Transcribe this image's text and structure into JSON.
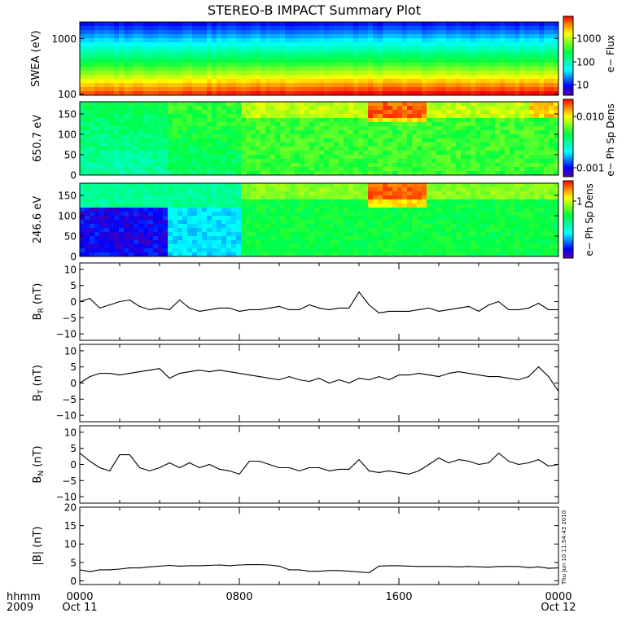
{
  "title": "STEREO-B IMPACT Summary Plot",
  "footer": {
    "time_label": "hhmm",
    "year_label": "2009",
    "x_ticks": [
      "0000",
      "0800",
      "1600",
      "0000"
    ],
    "date_labels": [
      "Oct 11",
      "Oct 12"
    ],
    "timestamp": "Thu Jun 10 11:54:43 2010"
  },
  "colors": {
    "colormap": [
      "#5500aa",
      "#0000ff",
      "#00ffff",
      "#00ff40",
      "#ffff00",
      "#ff8000",
      "#ff0000"
    ],
    "line": "#000000"
  },
  "chart_data": [
    {
      "type": "heatmap",
      "name": "swea",
      "ylabel": "SWEA (eV)",
      "yscale": "log",
      "ylim": [
        95,
        2000
      ],
      "yticks": [
        "1000",
        "100"
      ],
      "colorbar_label": "e− Flux",
      "colorbar_scale": "log",
      "colorbar_range": [
        3,
        6000
      ],
      "colorbar_ticks": [
        "1000",
        "100",
        "10"
      ]
    },
    {
      "type": "heatmap",
      "name": "pad650",
      "ylabel": "650.7 eV",
      "ylim": [
        0,
        180
      ],
      "yticks": [
        "150",
        "100",
        "50",
        "0"
      ],
      "colorbar_label": "e− Ph Sp Dens",
      "colorbar_scale": "log",
      "colorbar_ticks": [
        "0.010",
        "0.001"
      ]
    },
    {
      "type": "heatmap",
      "name": "pad246",
      "ylabel": "246.6 eV",
      "ylim": [
        0,
        180
      ],
      "yticks": [
        "150",
        "100",
        "50",
        "0"
      ],
      "colorbar_label": "e− Ph Sp Dens",
      "colorbar_scale": "log",
      "colorbar_ticks": [
        "1"
      ]
    },
    {
      "type": "line",
      "name": "br",
      "ylabel_main": "B",
      "ylabel_sub": "R",
      "ylabel_unit": " (nT)",
      "ylim": [
        -12,
        12
      ],
      "yticks": [
        "10",
        "5",
        "0",
        "−5",
        "−10"
      ],
      "x": [
        0,
        0.5,
        1,
        1.5,
        2,
        2.5,
        3,
        3.5,
        4,
        4.5,
        5,
        5.5,
        6,
        6.5,
        7,
        7.5,
        8,
        8.5,
        9,
        9.5,
        10,
        10.5,
        11,
        11.5,
        12,
        12.5,
        13,
        13.5,
        14,
        14.5,
        15,
        15.5,
        16,
        16.5,
        17,
        17.5,
        18,
        18.5,
        19,
        19.5,
        20,
        20.5,
        21,
        21.5,
        22,
        22.5,
        23,
        23.5,
        24
      ],
      "y": [
        0,
        1,
        -2,
        -1,
        0,
        0.5,
        -1.5,
        -2.5,
        -2,
        -2.5,
        0.5,
        -2,
        -3,
        -2.5,
        -2,
        -2,
        -3,
        -2.5,
        -2.5,
        -2,
        -1.5,
        -2.5,
        -2.5,
        -1,
        -2,
        -2.5,
        -2,
        -2,
        3,
        -1,
        -3.5,
        -3,
        -3,
        -3,
        -2.5,
        -2,
        -3,
        -2.5,
        -2,
        -1.5,
        -3,
        -1,
        0,
        -2.5,
        -2.5,
        -2,
        -0.5,
        -2.5,
        -2.5
      ]
    },
    {
      "type": "line",
      "name": "bt",
      "ylabel_main": "B",
      "ylabel_sub": "T",
      "ylabel_unit": " (nT)",
      "ylim": [
        -12,
        12
      ],
      "yticks": [
        "10",
        "5",
        "0",
        "−5",
        "−10"
      ],
      "x": [
        0,
        0.5,
        1,
        1.5,
        2,
        2.5,
        3,
        3.5,
        4,
        4.5,
        5,
        5.5,
        6,
        6.5,
        7,
        7.5,
        8,
        8.5,
        9,
        9.5,
        10,
        10.5,
        11,
        11.5,
        12,
        12.5,
        13,
        13.5,
        14,
        14.5,
        15,
        15.5,
        16,
        16.5,
        17,
        17.5,
        18,
        18.5,
        19,
        19.5,
        20,
        20.5,
        21,
        21.5,
        22,
        22.5,
        23,
        23.5,
        24
      ],
      "y": [
        0,
        2,
        3,
        3,
        2.5,
        3,
        3.5,
        4,
        4.5,
        1.5,
        3,
        3.5,
        4,
        3.5,
        4,
        3.5,
        3,
        2.5,
        2,
        1.5,
        1,
        2,
        1,
        0.5,
        1.5,
        0,
        1,
        0,
        1.5,
        1,
        2,
        1,
        2.5,
        2.5,
        3,
        2.5,
        2,
        3,
        3.5,
        3,
        2.5,
        2,
        2,
        1.5,
        1,
        2,
        5,
        2,
        -2.5
      ]
    },
    {
      "type": "line",
      "name": "bn",
      "ylabel_main": "B",
      "ylabel_sub": "N",
      "ylabel_unit": " (nT)",
      "ylim": [
        -12,
        12
      ],
      "yticks": [
        "10",
        "5",
        "0",
        "−5",
        "−10"
      ],
      "x": [
        0,
        0.5,
        1,
        1.5,
        2,
        2.5,
        3,
        3.5,
        4,
        4.5,
        5,
        5.5,
        6,
        6.5,
        7,
        7.5,
        8,
        8.5,
        9,
        9.5,
        10,
        10.5,
        11,
        11.5,
        12,
        12.5,
        13,
        13.5,
        14,
        14.5,
        15,
        15.5,
        16,
        16.5,
        17,
        17.5,
        18,
        18.5,
        19,
        19.5,
        20,
        20.5,
        21,
        21.5,
        22,
        22.5,
        23,
        23.5,
        24
      ],
      "y": [
        3.5,
        1,
        -1,
        -2,
        3,
        3,
        -1,
        -2,
        -1,
        0.5,
        -1,
        0.5,
        -1,
        0,
        -1.5,
        -2,
        -3,
        1,
        1,
        0,
        -1,
        -1,
        -2,
        -1,
        -1,
        -2,
        -1.5,
        -1.5,
        1.5,
        -2,
        -2.5,
        -2,
        -2.5,
        -3,
        -2,
        0,
        2,
        0.5,
        1.5,
        1,
        0,
        0.5,
        3.5,
        1,
        0,
        0.5,
        1.5,
        -0.5,
        0
      ]
    },
    {
      "type": "line",
      "name": "bmag",
      "ylabel": "|B| (nT)",
      "ylim": [
        -1,
        20
      ],
      "yticks": [
        "20",
        "15",
        "10",
        "5",
        "0"
      ],
      "x": [
        0,
        0.5,
        1,
        1.5,
        2,
        2.5,
        3,
        3.5,
        4,
        4.5,
        5,
        5.5,
        6,
        6.5,
        7,
        7.5,
        8,
        8.5,
        9,
        9.5,
        10,
        10.5,
        11,
        11.5,
        12,
        12.5,
        13,
        13.5,
        14,
        14.5,
        15,
        15.5,
        16,
        16.5,
        17,
        17.5,
        18,
        18.5,
        19,
        19.5,
        20,
        20.5,
        21,
        21.5,
        22,
        22.5,
        23,
        23.5,
        24
      ],
      "y": [
        3,
        2.5,
        3,
        3,
        3.2,
        3.5,
        3.5,
        3.8,
        4,
        4.2,
        4,
        4.1,
        4.1,
        4.2,
        4.3,
        4.1,
        4.3,
        4.4,
        4.4,
        4.3,
        4,
        3,
        3,
        2.6,
        2.6,
        2.8,
        2.8,
        2.6,
        2.4,
        2.2,
        4,
        4.1,
        4.1,
        4,
        3.9,
        3.9,
        3.9,
        3.9,
        3.8,
        3.9,
        3.8,
        3.7,
        3.9,
        3.9,
        3.9,
        3.6,
        3.8,
        3.4,
        3.5
      ]
    }
  ]
}
